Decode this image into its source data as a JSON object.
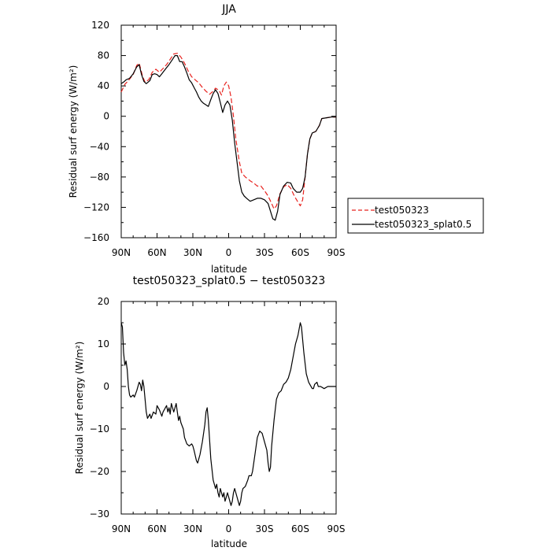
{
  "chart_data": [
    {
      "type": "line",
      "title": "JJA",
      "xlabel": "latitude",
      "ylabel": "Residual surf energy (W/m²)",
      "xlim": [
        90,
        -90
      ],
      "ylim": [
        -160,
        120
      ],
      "x_ticks": [
        90,
        60,
        30,
        0,
        -30,
        -60,
        -90
      ],
      "x_tick_labels": [
        "90N",
        "60N",
        "30N",
        "0",
        "30S",
        "60S",
        "90S"
      ],
      "y_ticks": [
        -160,
        -120,
        -80,
        -40,
        0,
        40,
        80,
        120
      ],
      "y_tick_labels": [
        "−160",
        "−120",
        "−80",
        "−40",
        "0",
        "40",
        "80",
        "120"
      ],
      "legend_position": "right",
      "series": [
        {
          "name": "test050323",
          "color": "#e8231f",
          "dash": "dashed",
          "points": [
            [
              90,
              32
            ],
            [
              87,
              42
            ],
            [
              84,
              47
            ],
            [
              80,
              55
            ],
            [
              77,
              67
            ],
            [
              75,
              70
            ],
            [
              72,
              52
            ],
            [
              70,
              45
            ],
            [
              67,
              48
            ],
            [
              64,
              58
            ],
            [
              61,
              62
            ],
            [
              58,
              58
            ],
            [
              55,
              63
            ],
            [
              52,
              68
            ],
            [
              49,
              75
            ],
            [
              46,
              82
            ],
            [
              43,
              83
            ],
            [
              40,
              78
            ],
            [
              37,
              70
            ],
            [
              34,
              60
            ],
            [
              31,
              52
            ],
            [
              28,
              48
            ],
            [
              25,
              44
            ],
            [
              22,
              38
            ],
            [
              19,
              33
            ],
            [
              16,
              29
            ],
            [
              13,
              33
            ],
            [
              11,
              37
            ],
            [
              8,
              34
            ],
            [
              6,
              28
            ],
            [
              4,
              40
            ],
            [
              2,
              45
            ],
            [
              0,
              40
            ],
            [
              -2,
              25
            ],
            [
              -4,
              0
            ],
            [
              -6,
              -30
            ],
            [
              -9,
              -60
            ],
            [
              -11,
              -75
            ],
            [
              -14,
              -80
            ],
            [
              -18,
              -85
            ],
            [
              -21,
              -88
            ],
            [
              -24,
              -92
            ],
            [
              -27,
              -92
            ],
            [
              -30,
              -98
            ],
            [
              -33,
              -105
            ],
            [
              -36,
              -115
            ],
            [
              -38,
              -122
            ],
            [
              -40,
              -118
            ],
            [
              -43,
              -102
            ],
            [
              -46,
              -93
            ],
            [
              -49,
              -90
            ],
            [
              -52,
              -95
            ],
            [
              -55,
              -105
            ],
            [
              -58,
              -113
            ],
            [
              -60,
              -118
            ],
            [
              -62,
              -110
            ],
            [
              -64,
              -80
            ],
            [
              -66,
              -50
            ],
            [
              -68,
              -30
            ],
            [
              -70,
              -22
            ],
            [
              -73,
              -20
            ],
            [
              -76,
              -12
            ],
            [
              -78,
              -3
            ],
            [
              -82,
              -2
            ],
            [
              -86,
              -1
            ],
            [
              -90,
              -1
            ]
          ]
        },
        {
          "name": "test050323_splat0.5",
          "color": "#000000",
          "dash": "solid",
          "points": [
            [
              90,
              43
            ],
            [
              88,
              45
            ],
            [
              86,
              48
            ],
            [
              83,
              50
            ],
            [
              80,
              56
            ],
            [
              77,
              65
            ],
            [
              75,
              68
            ],
            [
              73,
              55
            ],
            [
              71,
              46
            ],
            [
              69,
              43
            ],
            [
              66,
              47
            ],
            [
              64,
              55
            ],
            [
              62,
              56
            ],
            [
              60,
              55
            ],
            [
              58,
              52
            ],
            [
              56,
              56
            ],
            [
              53,
              62
            ],
            [
              50,
              68
            ],
            [
              47,
              75
            ],
            [
              45,
              80
            ],
            [
              43,
              80
            ],
            [
              41,
              72
            ],
            [
              39,
              72
            ],
            [
              37,
              65
            ],
            [
              35,
              57
            ],
            [
              33,
              48
            ],
            [
              31,
              44
            ],
            [
              29,
              38
            ],
            [
              27,
              32
            ],
            [
              25,
              25
            ],
            [
              23,
              20
            ],
            [
              21,
              17
            ],
            [
              19,
              15
            ],
            [
              17,
              13
            ],
            [
              15,
              22
            ],
            [
              13,
              30
            ],
            [
              11,
              35
            ],
            [
              9,
              30
            ],
            [
              7,
              18
            ],
            [
              5,
              5
            ],
            [
              3,
              15
            ],
            [
              1,
              20
            ],
            [
              -1,
              15
            ],
            [
              -3,
              -5
            ],
            [
              -5,
              -35
            ],
            [
              -7,
              -60
            ],
            [
              -9,
              -85
            ],
            [
              -11,
              -100
            ],
            [
              -13,
              -105
            ],
            [
              -15,
              -108
            ],
            [
              -18,
              -112
            ],
            [
              -21,
              -110
            ],
            [
              -24,
              -108
            ],
            [
              -27,
              -108
            ],
            [
              -30,
              -110
            ],
            [
              -33,
              -115
            ],
            [
              -35,
              -125
            ],
            [
              -37,
              -135
            ],
            [
              -39,
              -137
            ],
            [
              -41,
              -125
            ],
            [
              -43,
              -103
            ],
            [
              -46,
              -92
            ],
            [
              -49,
              -87
            ],
            [
              -52,
              -88
            ],
            [
              -54,
              -95
            ],
            [
              -57,
              -100
            ],
            [
              -60,
              -100
            ],
            [
              -62,
              -95
            ],
            [
              -64,
              -80
            ],
            [
              -66,
              -50
            ],
            [
              -68,
              -30
            ],
            [
              -70,
              -22
            ],
            [
              -73,
              -20
            ],
            [
              -76,
              -12
            ],
            [
              -78,
              -3
            ],
            [
              -82,
              -2
            ],
            [
              -86,
              -1
            ],
            [
              -90,
              -1
            ]
          ]
        }
      ]
    },
    {
      "type": "line",
      "title": "test050323_splat0.5 − test050323",
      "xlabel": "latitude",
      "ylabel": "Residual surf energy (W/m²)",
      "xlim": [
        90,
        -90
      ],
      "ylim": [
        -30,
        20
      ],
      "x_ticks": [
        90,
        60,
        30,
        0,
        -30,
        -60,
        -90
      ],
      "x_tick_labels": [
        "90N",
        "60N",
        "30N",
        "0",
        "30S",
        "60S",
        "90S"
      ],
      "y_ticks": [
        -30,
        -20,
        -10,
        0,
        10,
        20
      ],
      "y_tick_labels": [
        "−30",
        "−20",
        "−10",
        "0",
        "10",
        "20"
      ],
      "series": [
        {
          "color": "#000000",
          "dash": "solid",
          "points": [
            [
              90,
              15
            ],
            [
              89,
              14
            ],
            [
              88,
              8
            ],
            [
              87,
              5
            ],
            [
              86,
              6
            ],
            [
              85,
              4
            ],
            [
              84,
              0
            ],
            [
              83,
              -2
            ],
            [
              82,
              -2.5
            ],
            [
              80,
              -2
            ],
            [
              79,
              -2.5
            ],
            [
              77,
              -1
            ],
            [
              75,
              1
            ],
            [
              74,
              0.5
            ],
            [
              73,
              -1
            ],
            [
              72,
              1.5
            ],
            [
              71,
              0
            ],
            [
              70,
              -3
            ],
            [
              69,
              -6
            ],
            [
              68,
              -7.5
            ],
            [
              66,
              -6.5
            ],
            [
              65,
              -7.5
            ],
            [
              63,
              -6
            ],
            [
              61,
              -6.5
            ],
            [
              60,
              -4.5
            ],
            [
              58,
              -5.5
            ],
            [
              56,
              -7
            ],
            [
              55,
              -6
            ],
            [
              53,
              -5
            ],
            [
              52,
              -4.5
            ],
            [
              51,
              -6
            ],
            [
              50,
              -5
            ],
            [
              49,
              -6.5
            ],
            [
              48,
              -4
            ],
            [
              47,
              -5
            ],
            [
              46,
              -6
            ],
            [
              45,
              -5
            ],
            [
              44,
              -4
            ],
            [
              43,
              -6
            ],
            [
              42,
              -8
            ],
            [
              41,
              -7
            ],
            [
              40,
              -8.5
            ],
            [
              38,
              -10
            ],
            [
              37,
              -12
            ],
            [
              35,
              -13.5
            ],
            [
              33,
              -14
            ],
            [
              31,
              -13.5
            ],
            [
              30,
              -14
            ],
            [
              29,
              -15
            ],
            [
              27,
              -17.5
            ],
            [
              26,
              -18
            ],
            [
              25,
              -17
            ],
            [
              24,
              -16
            ],
            [
              22,
              -13
            ],
            [
              20,
              -9
            ],
            [
              19,
              -6
            ],
            [
              18,
              -5
            ],
            [
              17,
              -8
            ],
            [
              15,
              -17
            ],
            [
              13,
              -22
            ],
            [
              11,
              -24
            ],
            [
              10,
              -23
            ],
            [
              9,
              -25
            ],
            [
              8,
              -26
            ],
            [
              7,
              -24
            ],
            [
              6,
              -25
            ],
            [
              5,
              -26
            ],
            [
              4,
              -25
            ],
            [
              3,
              -27
            ],
            [
              2,
              -26
            ],
            [
              1,
              -25
            ],
            [
              0,
              -26
            ],
            [
              -1,
              -27
            ],
            [
              -2,
              -28
            ],
            [
              -3,
              -27
            ],
            [
              -4,
              -25
            ],
            [
              -5,
              -24
            ],
            [
              -6,
              -25
            ],
            [
              -7,
              -26
            ],
            [
              -8,
              -27
            ],
            [
              -9,
              -28
            ],
            [
              -10,
              -27
            ],
            [
              -11,
              -25
            ],
            [
              -12,
              -24
            ],
            [
              -14,
              -23.5
            ],
            [
              -16,
              -22
            ],
            [
              -17,
              -21
            ],
            [
              -19,
              -21
            ],
            [
              -20,
              -20
            ],
            [
              -22,
              -16
            ],
            [
              -24,
              -12
            ],
            [
              -26,
              -10.5
            ],
            [
              -28,
              -11
            ],
            [
              -30,
              -13
            ],
            [
              -32,
              -15
            ],
            [
              -33,
              -18
            ],
            [
              -34,
              -20
            ],
            [
              -35,
              -19
            ],
            [
              -36,
              -14
            ],
            [
              -38,
              -8
            ],
            [
              -40,
              -3
            ],
            [
              -42,
              -1.5
            ],
            [
              -44,
              -1
            ],
            [
              -46,
              0.5
            ],
            [
              -48,
              1
            ],
            [
              -50,
              2
            ],
            [
              -52,
              4
            ],
            [
              -54,
              7
            ],
            [
              -56,
              10
            ],
            [
              -58,
              12
            ],
            [
              -60,
              15
            ],
            [
              -61,
              14
            ],
            [
              -63,
              8
            ],
            [
              -65,
              3
            ],
            [
              -67,
              1
            ],
            [
              -68,
              0.5
            ],
            [
              -70,
              -0.5
            ],
            [
              -71,
              -0.5
            ],
            [
              -72,
              0.5
            ],
            [
              -74,
              1
            ],
            [
              -75,
              0
            ],
            [
              -77,
              0
            ],
            [
              -80,
              -0.5
            ],
            [
              -83,
              0
            ],
            [
              -86,
              0
            ],
            [
              -90,
              0
            ]
          ]
        }
      ]
    }
  ]
}
